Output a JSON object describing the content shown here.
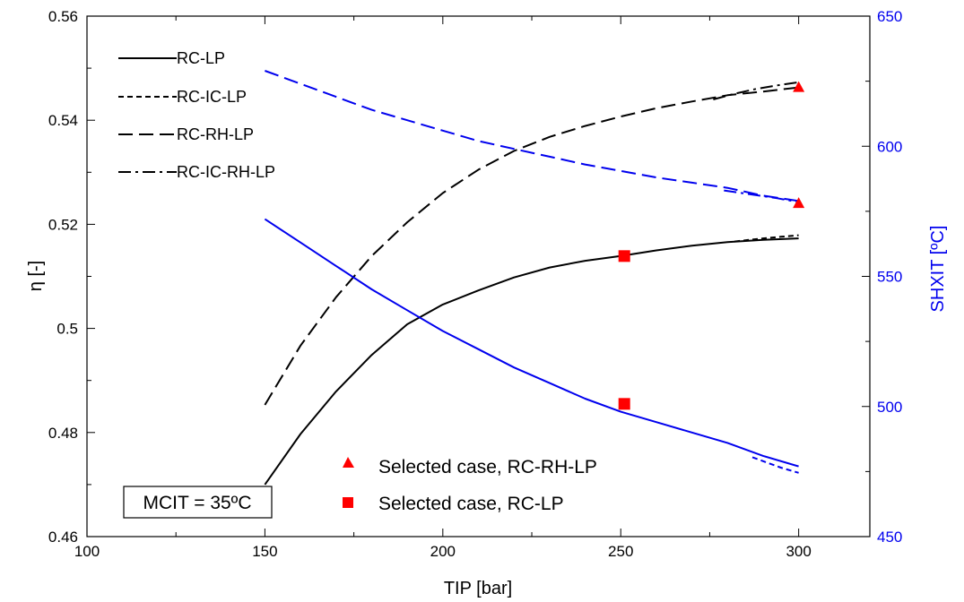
{
  "chart_data": {
    "type": "line",
    "title": "",
    "xlabel": "TIP [bar]",
    "ylabel": "η [-]",
    "ylabel_right": "SHXIT [ºC]",
    "xlim": [
      100,
      320
    ],
    "ylim": [
      0.46,
      0.56
    ],
    "ylim_right": [
      450,
      650
    ],
    "x_ticks": [
      "100",
      "150",
      "200",
      "250",
      "300"
    ],
    "y_ticks": [
      "0.46",
      "0.48",
      "0.5",
      "0.52",
      "0.54",
      "0.56"
    ],
    "y_ticks_right": [
      "450",
      "500",
      "550",
      "600",
      "650"
    ],
    "grid": false,
    "colors": {
      "efficiency": "#000000",
      "shxit": "#0000ee",
      "selected": "#ff0000"
    },
    "legend": {
      "position": "top-left",
      "entries": [
        {
          "label": "RC-LP",
          "dash": "solid"
        },
        {
          "label": "RC-IC-LP",
          "dash": "short-dash"
        },
        {
          "label": "RC-RH-LP",
          "dash": "long-dash"
        },
        {
          "label": "RC-IC-RH-LP",
          "dash": "dash-dot"
        }
      ]
    },
    "series": [
      {
        "name": "RC-LP",
        "axis": "left",
        "dash": "solid",
        "color": "#000000",
        "x": [
          150,
          160,
          170,
          180,
          190,
          200,
          210,
          220,
          230,
          240,
          250,
          260,
          270,
          280,
          290,
          300
        ],
        "y": [
          0.47,
          0.4797,
          0.4879,
          0.4949,
          0.5008,
          0.5046,
          0.5073,
          0.5098,
          0.5117,
          0.513,
          0.5139,
          0.515,
          0.5159,
          0.5166,
          0.517,
          0.5173
        ]
      },
      {
        "name": "RC-IC-LP",
        "axis": "left",
        "dash": "short-dash",
        "color": "#000000",
        "x": [
          282,
          286,
          290,
          295,
          300
        ],
        "y": [
          0.5167,
          0.517,
          0.5173,
          0.5176,
          0.5179
        ]
      },
      {
        "name": "RC-RH-LP",
        "axis": "left",
        "dash": "long-dash",
        "color": "#000000",
        "x": [
          150,
          160,
          170,
          180,
          190,
          200,
          210,
          220,
          230,
          240,
          250,
          260,
          270,
          280,
          290,
          300
        ],
        "y": [
          0.4853,
          0.4967,
          0.506,
          0.5139,
          0.5204,
          0.526,
          0.5305,
          0.5341,
          0.5368,
          0.5389,
          0.5407,
          0.5423,
          0.5436,
          0.5448,
          0.5455,
          0.5463
        ]
      },
      {
        "name": "RC-IC-RH-LP",
        "axis": "left",
        "dash": "dash-dot",
        "color": "#000000",
        "x": [
          276,
          282,
          288,
          294,
          300
        ],
        "y": [
          0.544,
          0.5451,
          0.546,
          0.5467,
          0.5473
        ]
      },
      {
        "name": "RC-LP",
        "axis": "right",
        "dash": "solid",
        "color": "#0000ee",
        "x": [
          150,
          160,
          170,
          180,
          190,
          200,
          210,
          220,
          230,
          240,
          250,
          260,
          270,
          280,
          290,
          300
        ],
        "y": [
          572,
          563,
          554,
          545,
          537,
          529,
          522,
          515,
          509,
          503,
          498,
          494,
          490,
          486,
          481,
          477
        ]
      },
      {
        "name": "RC-IC-LP",
        "axis": "right",
        "dash": "short-dash",
        "color": "#0000ee",
        "x": [
          287,
          291,
          295,
          300
        ],
        "y": [
          480.5,
          478.5,
          476.5,
          474.5
        ]
      },
      {
        "name": "RC-RH-LP",
        "axis": "right",
        "dash": "long-dash",
        "color": "#0000ee",
        "x": [
          150,
          160,
          170,
          180,
          190,
          200,
          210,
          220,
          230,
          240,
          250,
          260,
          270,
          280,
          290,
          300
        ],
        "y": [
          629,
          624,
          619,
          614,
          610,
          606,
          602,
          599,
          596,
          593,
          590.5,
          588,
          586,
          584,
          581,
          579
        ]
      },
      {
        "name": "RC-IC-RH-LP",
        "axis": "right",
        "dash": "dash-dot",
        "color": "#0000ee",
        "x": [
          279,
          284,
          289,
          294,
          300
        ],
        "y": [
          583,
          582,
          581,
          580,
          578.5
        ]
      }
    ],
    "selected_points": [
      {
        "label": "Selected case, RC-RH-LP",
        "marker": "triangle",
        "points": [
          {
            "x": 300,
            "y": 0.5463,
            "axis": "left"
          },
          {
            "x": 300,
            "y": 578,
            "axis": "right"
          }
        ]
      },
      {
        "label": "Selected case, RC-LP",
        "marker": "square",
        "points": [
          {
            "x": 251,
            "y": 0.5139,
            "axis": "left"
          },
          {
            "x": 251,
            "y": 501,
            "axis": "right"
          }
        ]
      }
    ],
    "annotation": "MCIT = 35ºC"
  }
}
